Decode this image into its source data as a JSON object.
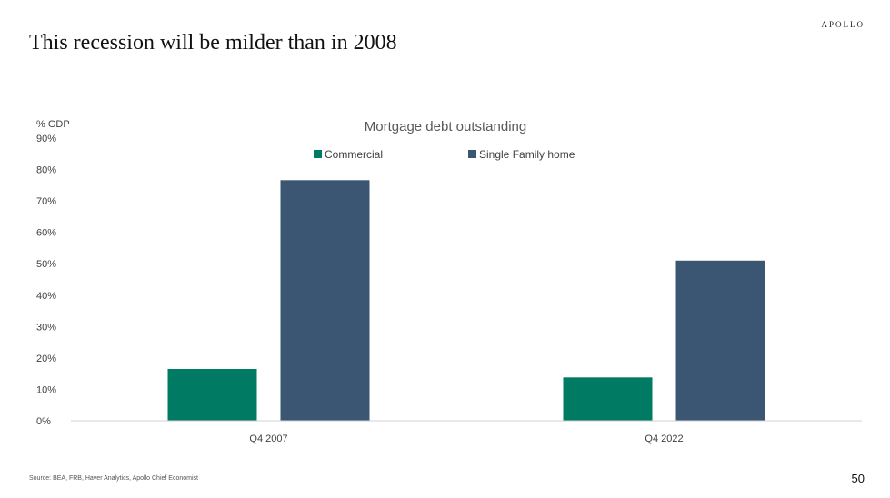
{
  "brand": "APOLLO",
  "slide_title": "This recession will be milder than in 2008",
  "source": "Source: BEA, FRB, Haver Analytics, Apollo Chief Economist",
  "page_number": "50",
  "colors": {
    "commercial": "#007a63",
    "single_family": "#3a5673"
  },
  "chart_data": {
    "type": "bar",
    "title": "Mortgage debt outstanding",
    "ylabel": "% GDP",
    "xlabel": "",
    "categories": [
      "Q4 2007",
      "Q4 2022"
    ],
    "series": [
      {
        "name": "Commercial",
        "values": [
          16.5,
          13.8
        ]
      },
      {
        "name": "Single Family home",
        "values": [
          76.6,
          51.0
        ]
      }
    ],
    "ylim": [
      0,
      90
    ],
    "yticks": [
      0,
      10,
      20,
      30,
      40,
      50,
      60,
      70,
      80,
      90
    ],
    "ytick_labels": [
      "0%",
      "10%",
      "20%",
      "30%",
      "40%",
      "50%",
      "60%",
      "70%",
      "80%",
      "90%"
    ],
    "grid": false,
    "legend_position": "top"
  }
}
